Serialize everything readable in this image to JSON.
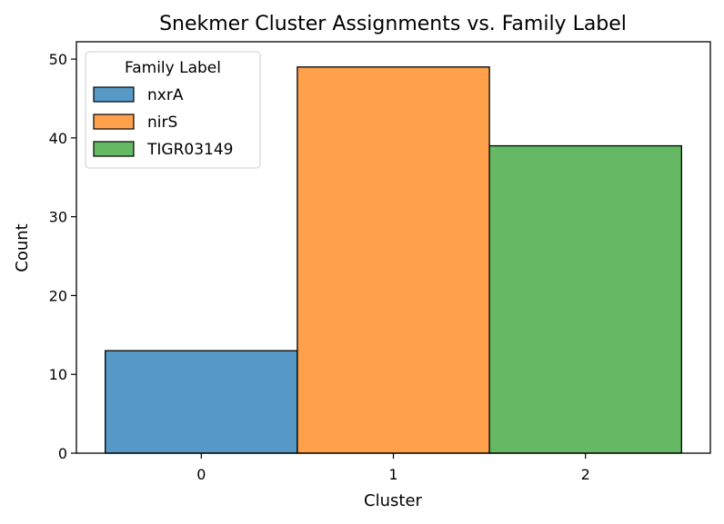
{
  "chart_data": {
    "type": "bar",
    "title": "Snekmer Cluster Assignments vs. Family Label",
    "xlabel": "Cluster",
    "ylabel": "Count",
    "categories": [
      "0",
      "1",
      "2"
    ],
    "x": [
      0,
      1,
      2
    ],
    "ylim": [
      0,
      52.2
    ],
    "xlim": [
      -0.65,
      2.65
    ],
    "yticks": [
      0,
      10,
      20,
      30,
      40,
      50
    ],
    "xticks": [
      0,
      1,
      2
    ],
    "grid": false,
    "legend": {
      "title": "Family Label",
      "position": "top-left"
    },
    "series": [
      {
        "name": "nxrA",
        "color": "#5799c6",
        "values": [
          13,
          0,
          0
        ]
      },
      {
        "name": "nirS",
        "color": "#ffa04b",
        "values": [
          0,
          49,
          0
        ]
      },
      {
        "name": "TIGR03149",
        "color": "#65b964",
        "values": [
          0,
          0,
          39
        ]
      }
    ]
  }
}
